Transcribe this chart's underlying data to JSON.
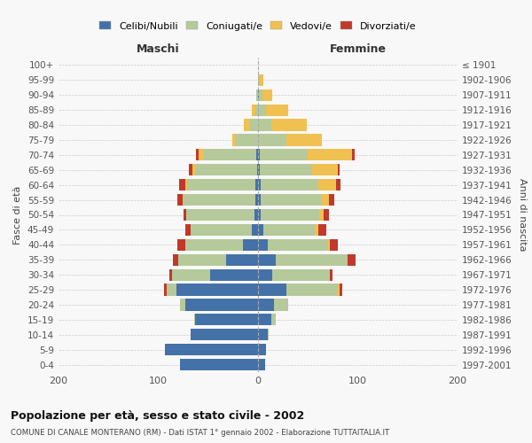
{
  "age_groups": [
    "0-4",
    "5-9",
    "10-14",
    "15-19",
    "20-24",
    "25-29",
    "30-34",
    "35-39",
    "40-44",
    "45-49",
    "50-54",
    "55-59",
    "60-64",
    "65-69",
    "70-74",
    "75-79",
    "80-84",
    "85-89",
    "90-94",
    "95-99",
    "100+"
  ],
  "birth_years": [
    "1997-2001",
    "1992-1996",
    "1987-1991",
    "1982-1986",
    "1977-1981",
    "1972-1976",
    "1967-1971",
    "1962-1966",
    "1957-1961",
    "1952-1956",
    "1947-1951",
    "1942-1946",
    "1937-1941",
    "1932-1936",
    "1927-1931",
    "1922-1926",
    "1917-1921",
    "1912-1916",
    "1907-1911",
    "1902-1906",
    "≤ 1901"
  ],
  "males_celibi": [
    78,
    93,
    68,
    63,
    73,
    82,
    48,
    32,
    15,
    6,
    4,
    3,
    3,
    1,
    2,
    0,
    0,
    0,
    0,
    0,
    0
  ],
  "males_coniugati": [
    0,
    0,
    0,
    1,
    5,
    10,
    38,
    48,
    58,
    62,
    68,
    72,
    68,
    62,
    52,
    22,
    8,
    3,
    2,
    0,
    0
  ],
  "males_vedovi": [
    0,
    0,
    0,
    0,
    0,
    0,
    0,
    0,
    0,
    0,
    0,
    1,
    2,
    3,
    6,
    4,
    6,
    3,
    0,
    0,
    0
  ],
  "males_divorziati": [
    0,
    0,
    0,
    0,
    0,
    2,
    3,
    5,
    8,
    5,
    3,
    5,
    6,
    3,
    2,
    0,
    0,
    0,
    0,
    0,
    0
  ],
  "females_nubili": [
    7,
    8,
    10,
    13,
    16,
    28,
    14,
    18,
    10,
    5,
    3,
    3,
    3,
    2,
    2,
    0,
    0,
    0,
    1,
    0,
    0
  ],
  "females_coniugate": [
    0,
    0,
    1,
    5,
    14,
    52,
    58,
    72,
    60,
    52,
    58,
    60,
    57,
    52,
    48,
    28,
    13,
    8,
    3,
    2,
    0
  ],
  "females_vedove": [
    0,
    0,
    0,
    0,
    0,
    2,
    0,
    0,
    2,
    3,
    5,
    8,
    18,
    26,
    44,
    36,
    36,
    22,
    10,
    3,
    0
  ],
  "females_divorziate": [
    0,
    0,
    0,
    0,
    0,
    2,
    3,
    8,
    8,
    8,
    5,
    5,
    5,
    2,
    3,
    0,
    0,
    0,
    0,
    0,
    0
  ],
  "color_celibi": "#4472a8",
  "color_coniugati": "#b5c99a",
  "color_vedovi": "#f0c050",
  "color_divorziati": "#c0392b",
  "title": "Popolazione per età, sesso e stato civile - 2002",
  "subtitle": "COMUNE DI CANALE MONTERANO (RM) - Dati ISTAT 1° gennaio 2002 - Elaborazione TUTTAITALIA.IT",
  "ylabel_left": "Fasce di età",
  "ylabel_right": "Anni di nascita",
  "header_left": "Maschi",
  "header_right": "Femmine",
  "legend_labels": [
    "Celibi/Nubili",
    "Coniugati/e",
    "Vedovi/e",
    "Divorziati/e"
  ],
  "xlim": 200,
  "bg_color": "#f8f8f8",
  "grid_color": "#cccccc"
}
